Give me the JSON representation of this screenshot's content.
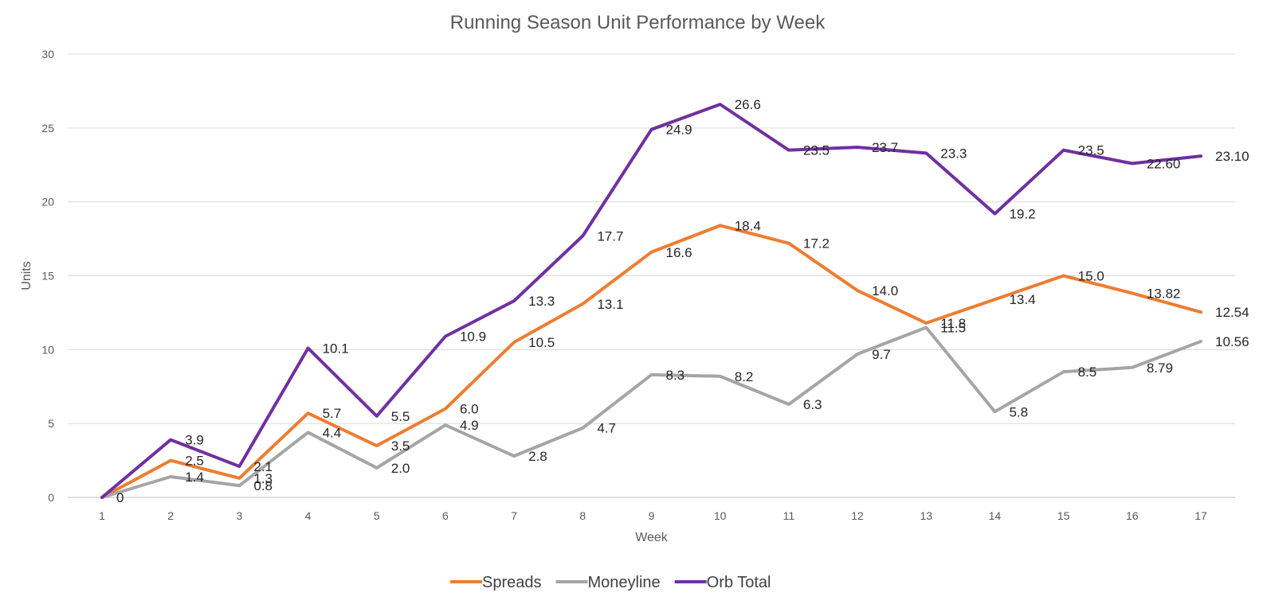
{
  "chart_data": {
    "type": "line",
    "title": "Running Season Unit Performance by Week",
    "xlabel": "Week",
    "ylabel": "Units",
    "x": [
      1,
      2,
      3,
      4,
      5,
      6,
      7,
      8,
      9,
      10,
      11,
      12,
      13,
      14,
      15,
      16,
      17
    ],
    "x_tick_labels": [
      "1",
      "2",
      "3",
      "4",
      "5",
      "6",
      "7",
      "8",
      "9",
      "10",
      "11",
      "12",
      "13",
      "14",
      "15",
      "16",
      "17"
    ],
    "ylim": [
      0,
      30
    ],
    "y_ticks": [
      0,
      5,
      10,
      15,
      20,
      25,
      30
    ],
    "y_tick_labels": [
      "0",
      "5",
      "10",
      "15",
      "20",
      "25",
      "30"
    ],
    "grid": true,
    "legend_position": "bottom",
    "series": [
      {
        "name": "Spreads",
        "color": "#ED7D31",
        "values": [
          0,
          2.5,
          1.3,
          5.7,
          3.5,
          6.0,
          10.5,
          13.1,
          16.6,
          18.4,
          17.2,
          14.0,
          11.8,
          13.4,
          15.0,
          13.82,
          12.54
        ],
        "labels": [
          "0",
          "2.5",
          "1.3",
          "5.7",
          "3.5",
          "6.0",
          "10.5",
          "13.1",
          "16.6",
          "18.4",
          "17.2",
          "14.0",
          "11.8",
          "13.4",
          "15.0",
          "13.82",
          "12.54"
        ]
      },
      {
        "name": "Moneyline",
        "color": "#A5A5A5",
        "values": [
          0,
          1.4,
          0.8,
          4.4,
          2.0,
          4.9,
          2.8,
          4.7,
          8.3,
          8.2,
          6.3,
          9.7,
          11.5,
          5.8,
          8.5,
          8.79,
          10.56
        ],
        "labels": [
          "0",
          "1.4",
          "0.8",
          "4.4",
          "2.0",
          "4.9",
          "2.8",
          "4.7",
          "8.3",
          "8.2",
          "6.3",
          "9.7",
          "11.5",
          "5.8",
          "8.5",
          "8.79",
          "10.56"
        ]
      },
      {
        "name": "Orb Total",
        "color": "#7030A0",
        "values": [
          0,
          3.9,
          2.1,
          10.1,
          5.5,
          10.9,
          13.3,
          17.7,
          24.9,
          26.6,
          23.5,
          23.7,
          23.3,
          19.2,
          23.5,
          22.6,
          23.1
        ],
        "labels": [
          "0",
          "3.9",
          "2.1",
          "10.1",
          "5.5",
          "10.9",
          "13.3",
          "17.7",
          "24.9",
          "26.6",
          "23.5",
          "23.7",
          "23.3",
          "19.2",
          "23.5",
          "22.60",
          "23.10"
        ]
      }
    ]
  }
}
